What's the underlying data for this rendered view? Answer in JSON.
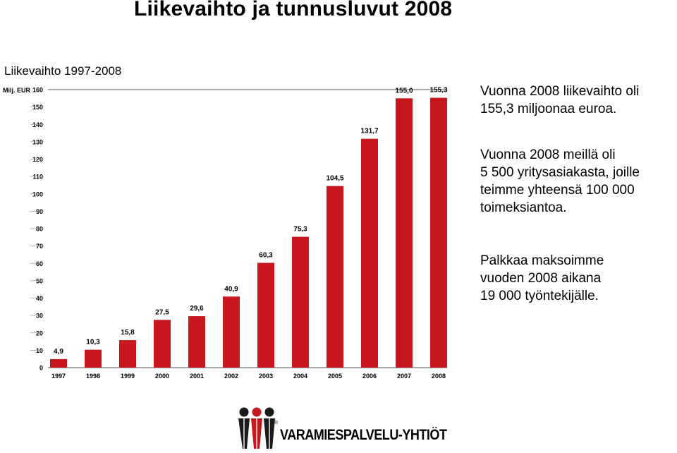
{
  "page": {
    "title": "Liikevaihto ja tunnusluvut 2008",
    "chart_heading": "Liikevaihto 1997-2008"
  },
  "chart_data": {
    "type": "bar",
    "ylabel": "Milj. EUR",
    "ylim": [
      0,
      160
    ],
    "yticks": [
      0,
      10,
      20,
      30,
      40,
      50,
      60,
      70,
      80,
      90,
      100,
      110,
      120,
      130,
      140,
      150,
      160
    ],
    "categories": [
      "1997",
      "1998",
      "1999",
      "2000",
      "2001",
      "2002",
      "2003",
      "2004",
      "2005",
      "2006",
      "2007",
      "2008"
    ],
    "values": [
      4.9,
      10.3,
      15.8,
      27.5,
      29.6,
      40.9,
      60.3,
      75.3,
      104.5,
      131.7,
      155.0,
      155.3
    ],
    "value_labels": [
      "4,9",
      "10,3",
      "15,8",
      "27,5",
      "29,6",
      "40,9",
      "60,3",
      "75,3",
      "104,5",
      "131,7",
      "155,0",
      "155,3"
    ],
    "bar_color": "#c8161d",
    "grid": false
  },
  "text": {
    "block1": [
      "Vuonna 2008 liikevaihto oli",
      "155,3 miljoonaa euroa."
    ],
    "block2": [
      "Vuonna 2008 meillä oli",
      "5 500 yritysasiakasta, joille",
      "teimme yhteensä 100 000",
      "toimeksiantoa."
    ],
    "block3": [
      "Palkkaa maksoimme",
      "vuoden 2008 aikana",
      "19 000 työntekijälle."
    ]
  },
  "logo": {
    "name": "VARAMIESPALVELU-YHTIÖT",
    "registered": "®",
    "colors": {
      "red": "#c8161d",
      "black": "#1a1a1a"
    }
  }
}
